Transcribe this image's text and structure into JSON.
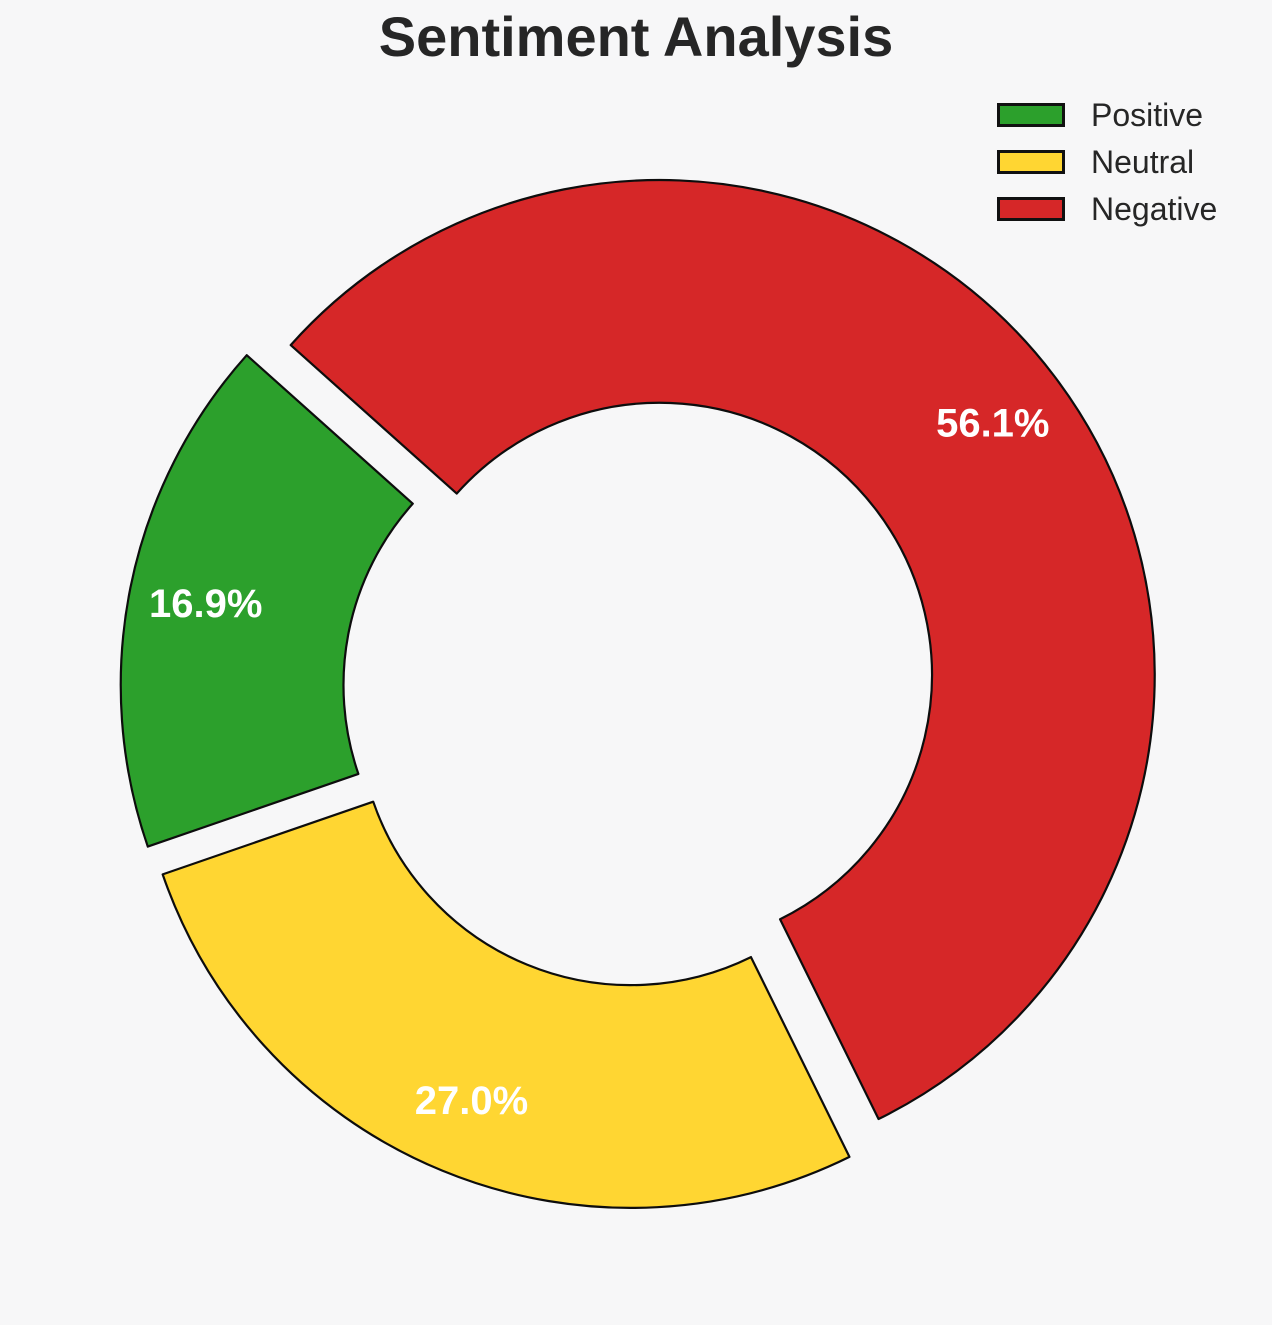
{
  "figure": {
    "background": "#f7f7f8",
    "title_color": "#262626",
    "legend_text_color": "#262626",
    "edge_color": "#0d0d0d"
  },
  "chart_data": {
    "type": "pie",
    "subtype": "donut-exploded",
    "title": "Sentiment Analysis",
    "categories": [
      "Positive",
      "Neutral",
      "Negative"
    ],
    "values": [
      16.9,
      27.0,
      56.1
    ],
    "unit": "%",
    "series": [
      {
        "name": "Positive",
        "value": 16.9,
        "label": "16.9%",
        "color": "#2CA02C"
      },
      {
        "name": "Neutral",
        "value": 27.0,
        "label": "27.0%",
        "color": "#FFD632"
      },
      {
        "name": "Negative",
        "value": 56.1,
        "label": "56.1%",
        "color": "#D62728"
      }
    ],
    "legend_position": "upper-right",
    "start_angle_deg": 138.2,
    "direction": "counterclockwise",
    "donut_hole_ratio": 0.55,
    "explode": 0.05,
    "slice_label_color": "#ffffff",
    "slice_label_distance": 0.845
  }
}
